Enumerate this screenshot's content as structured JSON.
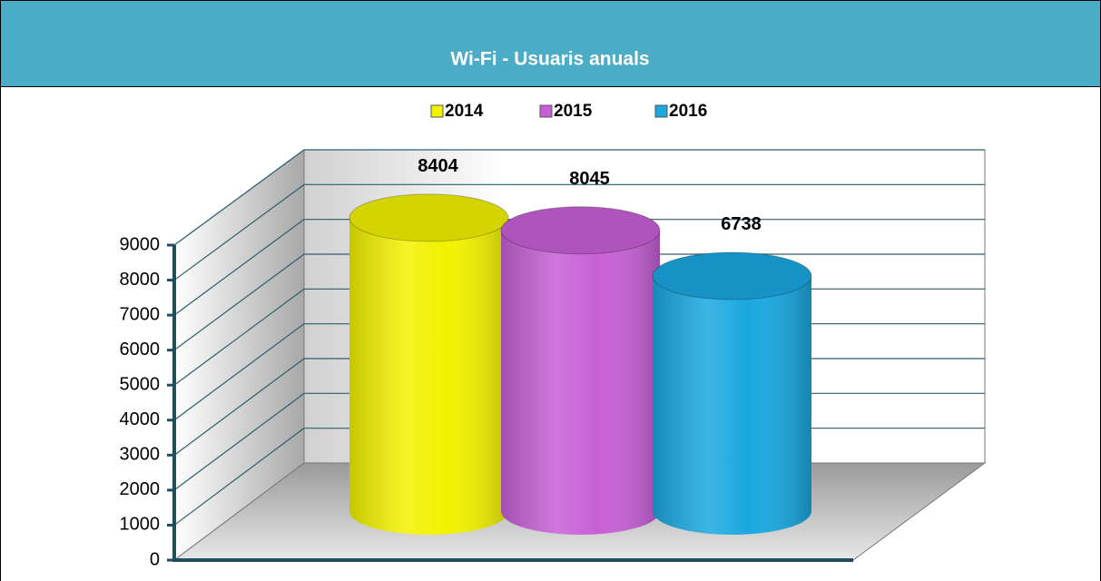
{
  "chart_data": {
    "type": "cylinder",
    "title": "Wi-Fi - Usuaris anuals",
    "series": [
      {
        "name": "2014",
        "color": "#f2f200",
        "values": [
          8404
        ]
      },
      {
        "name": "2015",
        "color": "#c760d6",
        "values": [
          8045
        ]
      },
      {
        "name": "2016",
        "color": "#1aa8e0",
        "values": [
          6738
        ]
      }
    ],
    "ylim": [
      0,
      9000
    ],
    "yticks": [
      0,
      1000,
      2000,
      3000,
      4000,
      5000,
      6000,
      7000,
      8000,
      9000
    ],
    "grid": true
  }
}
